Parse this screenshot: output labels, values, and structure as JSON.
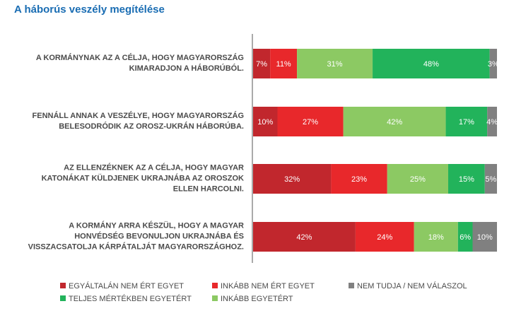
{
  "chart_data": {
    "type": "stacked_barh",
    "title": "A háborús veszély megítélése",
    "categories": [
      "A KORMÁNYNAK AZ A CÉLJA, HOGY MAGYARORSZÁG\nKIMARADJON A HÁBORÚBÓL.",
      "FENNÁLL ANNAK A VESZÉLYE, HOGY MAGYARORSZÁG\nBELESODRÓDIK AZ OROSZ-UKRÁN HÁBORÚBA.",
      "AZ ELLENZÉKNEK AZ A CÉLJA, HOGY MAGYAR\nKATONÁKAT KÜLDJENEK UKRAJNÁBA AZ OROSZOK\nELLEN HARCOLNI.",
      "A KORMÁNY ARRA KÉSZÜL, HOGY A MAGYAR\nHONVÉDSÉG BEVONULJON UKRAJNÁBA ÉS\nVISSZACSATOLJA KÁRPÁTALJÁT MAGYARORSZÁGHOZ."
    ],
    "series": [
      {
        "name": "EGYÁLTALÁN NEM ÉRT EGYET",
        "color": "#c1272d",
        "values": [
          7,
          10,
          32,
          42
        ],
        "value_labels": [
          "7%",
          "10%",
          "32%",
          "42%"
        ]
      },
      {
        "name": "INKÁBB NEM ÉRT EGYET",
        "color": "#e8282b",
        "values": [
          11,
          27,
          23,
          24
        ],
        "value_labels": [
          "11%",
          "27%",
          "23%",
          "24%"
        ]
      },
      {
        "name": "INKÁBB EGYETÉRT",
        "color": "#8cc963",
        "values": [
          31,
          42,
          25,
          18
        ],
        "value_labels": [
          "31%",
          "42%",
          "25%",
          "18%"
        ]
      },
      {
        "name": "TELJES MÉRTÉKBEN EGYETÉRT",
        "color": "#22b35b",
        "values": [
          48,
          17,
          15,
          6
        ],
        "value_labels": [
          "48%",
          "17%",
          "15%",
          "6%"
        ]
      },
      {
        "name": "NEM TUDJA / NEM VÁLASZOL",
        "color": "#808080",
        "values": [
          3,
          4,
          5,
          10
        ],
        "value_labels": [
          "3%",
          "4%",
          "5%",
          "10%"
        ]
      }
    ],
    "xlim": [
      0,
      100
    ]
  }
}
